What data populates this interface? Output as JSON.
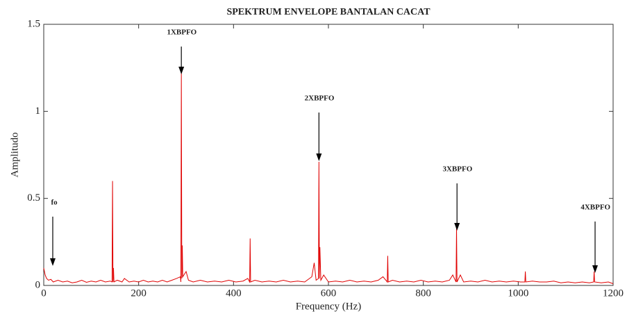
{
  "chart_data": {
    "type": "line",
    "title": "SPEKTRUM ENVELOPE BANTALAN CACAT",
    "xlabel": "Frequency (Hz)",
    "ylabel": "Amplitudo",
    "color": "#e00000",
    "xlim": [
      0,
      1200
    ],
    "xticks": [
      0,
      200,
      400,
      600,
      800,
      1000,
      1200
    ],
    "ylim": [
      0,
      1.5
    ],
    "yticks": [
      0,
      0.5,
      1,
      1.5
    ],
    "x": [
      0,
      3,
      6,
      10,
      15,
      20,
      30,
      40,
      50,
      60,
      70,
      80,
      90,
      100,
      110,
      120,
      130,
      140,
      144,
      145,
      146,
      147,
      148,
      155,
      165,
      170,
      180,
      190,
      200,
      210,
      220,
      230,
      240,
      250,
      260,
      270,
      280,
      288,
      289,
      290,
      291,
      292,
      293,
      300,
      305,
      315,
      330,
      345,
      360,
      375,
      390,
      405,
      420,
      430,
      434,
      435,
      436,
      445,
      460,
      475,
      490,
      505,
      520,
      535,
      550,
      565,
      570,
      574,
      579,
      580,
      581,
      582,
      584,
      590,
      600,
      615,
      630,
      645,
      660,
      675,
      690,
      705,
      715,
      724,
      725,
      726,
      735,
      750,
      765,
      780,
      795,
      810,
      825,
      840,
      855,
      862,
      869,
      870,
      871,
      878,
      885,
      900,
      915,
      930,
      945,
      960,
      975,
      990,
      1005,
      1014,
      1015,
      1016,
      1030,
      1045,
      1060,
      1075,
      1090,
      1105,
      1120,
      1135,
      1150,
      1159,
      1160,
      1161,
      1175,
      1190,
      1200
    ],
    "values": [
      0.1,
      0.06,
      0.04,
      0.03,
      0.035,
      0.02,
      0.03,
      0.02,
      0.025,
      0.015,
      0.02,
      0.03,
      0.018,
      0.025,
      0.02,
      0.03,
      0.02,
      0.025,
      0.02,
      0.6,
      0.02,
      0.1,
      0.02,
      0.03,
      0.02,
      0.04,
      0.02,
      0.025,
      0.02,
      0.03,
      0.02,
      0.025,
      0.02,
      0.03,
      0.02,
      0.03,
      0.04,
      0.05,
      0.02,
      1.23,
      0.04,
      0.23,
      0.05,
      0.08,
      0.03,
      0.02,
      0.03,
      0.02,
      0.025,
      0.02,
      0.03,
      0.02,
      0.025,
      0.04,
      0.02,
      0.27,
      0.02,
      0.03,
      0.02,
      0.025,
      0.02,
      0.03,
      0.02,
      0.025,
      0.02,
      0.05,
      0.13,
      0.03,
      0.04,
      0.71,
      0.04,
      0.22,
      0.03,
      0.06,
      0.02,
      0.025,
      0.02,
      0.03,
      0.02,
      0.025,
      0.02,
      0.03,
      0.05,
      0.02,
      0.17,
      0.02,
      0.03,
      0.02,
      0.025,
      0.02,
      0.03,
      0.02,
      0.025,
      0.02,
      0.03,
      0.06,
      0.02,
      0.33,
      0.02,
      0.06,
      0.02,
      0.025,
      0.02,
      0.03,
      0.02,
      0.025,
      0.02,
      0.025,
      0.02,
      0.02,
      0.08,
      0.02,
      0.025,
      0.02,
      0.02,
      0.025,
      0.015,
      0.02,
      0.015,
      0.02,
      0.015,
      0.02,
      0.08,
      0.02,
      0.015,
      0.02,
      0.01
    ],
    "annotations": [
      {
        "text": "fo",
        "xy": [
          19,
          0.112
        ],
        "xytext": [
          22,
          0.475
        ]
      },
      {
        "text": "1XBPFO",
        "xy": [
          290,
          1.213
        ],
        "xytext": [
          291,
          1.452
        ]
      },
      {
        "text": "2XBPFO",
        "xy": [
          580,
          0.714
        ],
        "xytext": [
          581,
          1.073
        ]
      },
      {
        "text": "3XBPFO",
        "xy": [
          871,
          0.315
        ],
        "xytext": [
          872,
          0.666
        ]
      },
      {
        "text": "4XBPFO",
        "xy": [
          1162,
          0.072
        ],
        "xytext": [
          1163,
          0.447
        ]
      }
    ]
  }
}
